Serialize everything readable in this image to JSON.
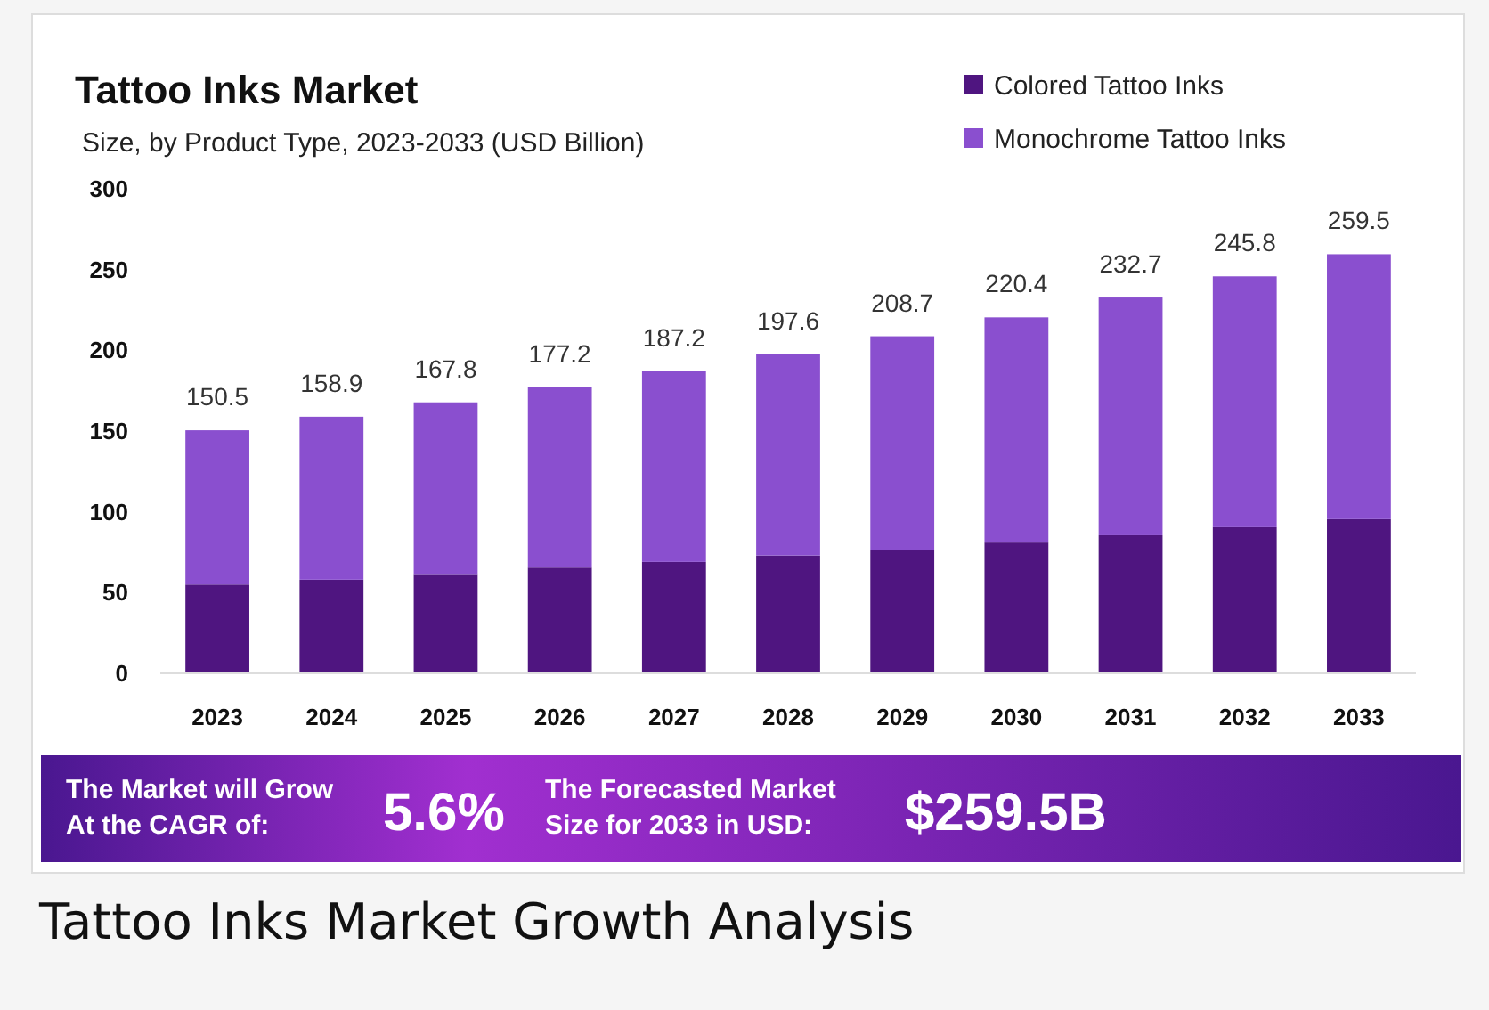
{
  "chart_data": {
    "type": "bar",
    "stacked": true,
    "title": "Tattoo Inks Market",
    "subtitle": "Size, by Product Type, 2023-2033 (USD Billion)",
    "categories": [
      "2023",
      "2024",
      "2025",
      "2026",
      "2027",
      "2028",
      "2029",
      "2030",
      "2031",
      "2032",
      "2033"
    ],
    "series": [
      {
        "name": "Colored Tattoo Inks",
        "color": "#4f1580",
        "values": [
          55,
          58,
          61,
          65.5,
          69,
          73,
          76.5,
          81,
          85.5,
          90.5,
          95.5
        ]
      },
      {
        "name": "Monochrome Tattoo Inks",
        "color": "#8a4fcf",
        "values": [
          95.5,
          100.9,
          106.8,
          111.7,
          118.2,
          124.6,
          132.2,
          139.4,
          147.2,
          155.3,
          164
        ]
      }
    ],
    "totals": [
      "150.5",
      "158.9",
      "167.8",
      "177.2",
      "187.2",
      "197.6",
      "208.7",
      "220.4",
      "232.7",
      "245.8",
      "259.5"
    ],
    "ylim": [
      0,
      300
    ],
    "yticks": [
      0,
      50,
      100,
      150,
      200,
      250,
      300
    ],
    "grid": false,
    "legend": "top right",
    "annotations": [
      "The Market will Grow\nAt the CAGR of:",
      "5.6%",
      "The Forecasted Market\nSize for 2033 in USD:",
      "$259.5B",
      "Tattoo Inks Market Growth Analysis"
    ]
  }
}
